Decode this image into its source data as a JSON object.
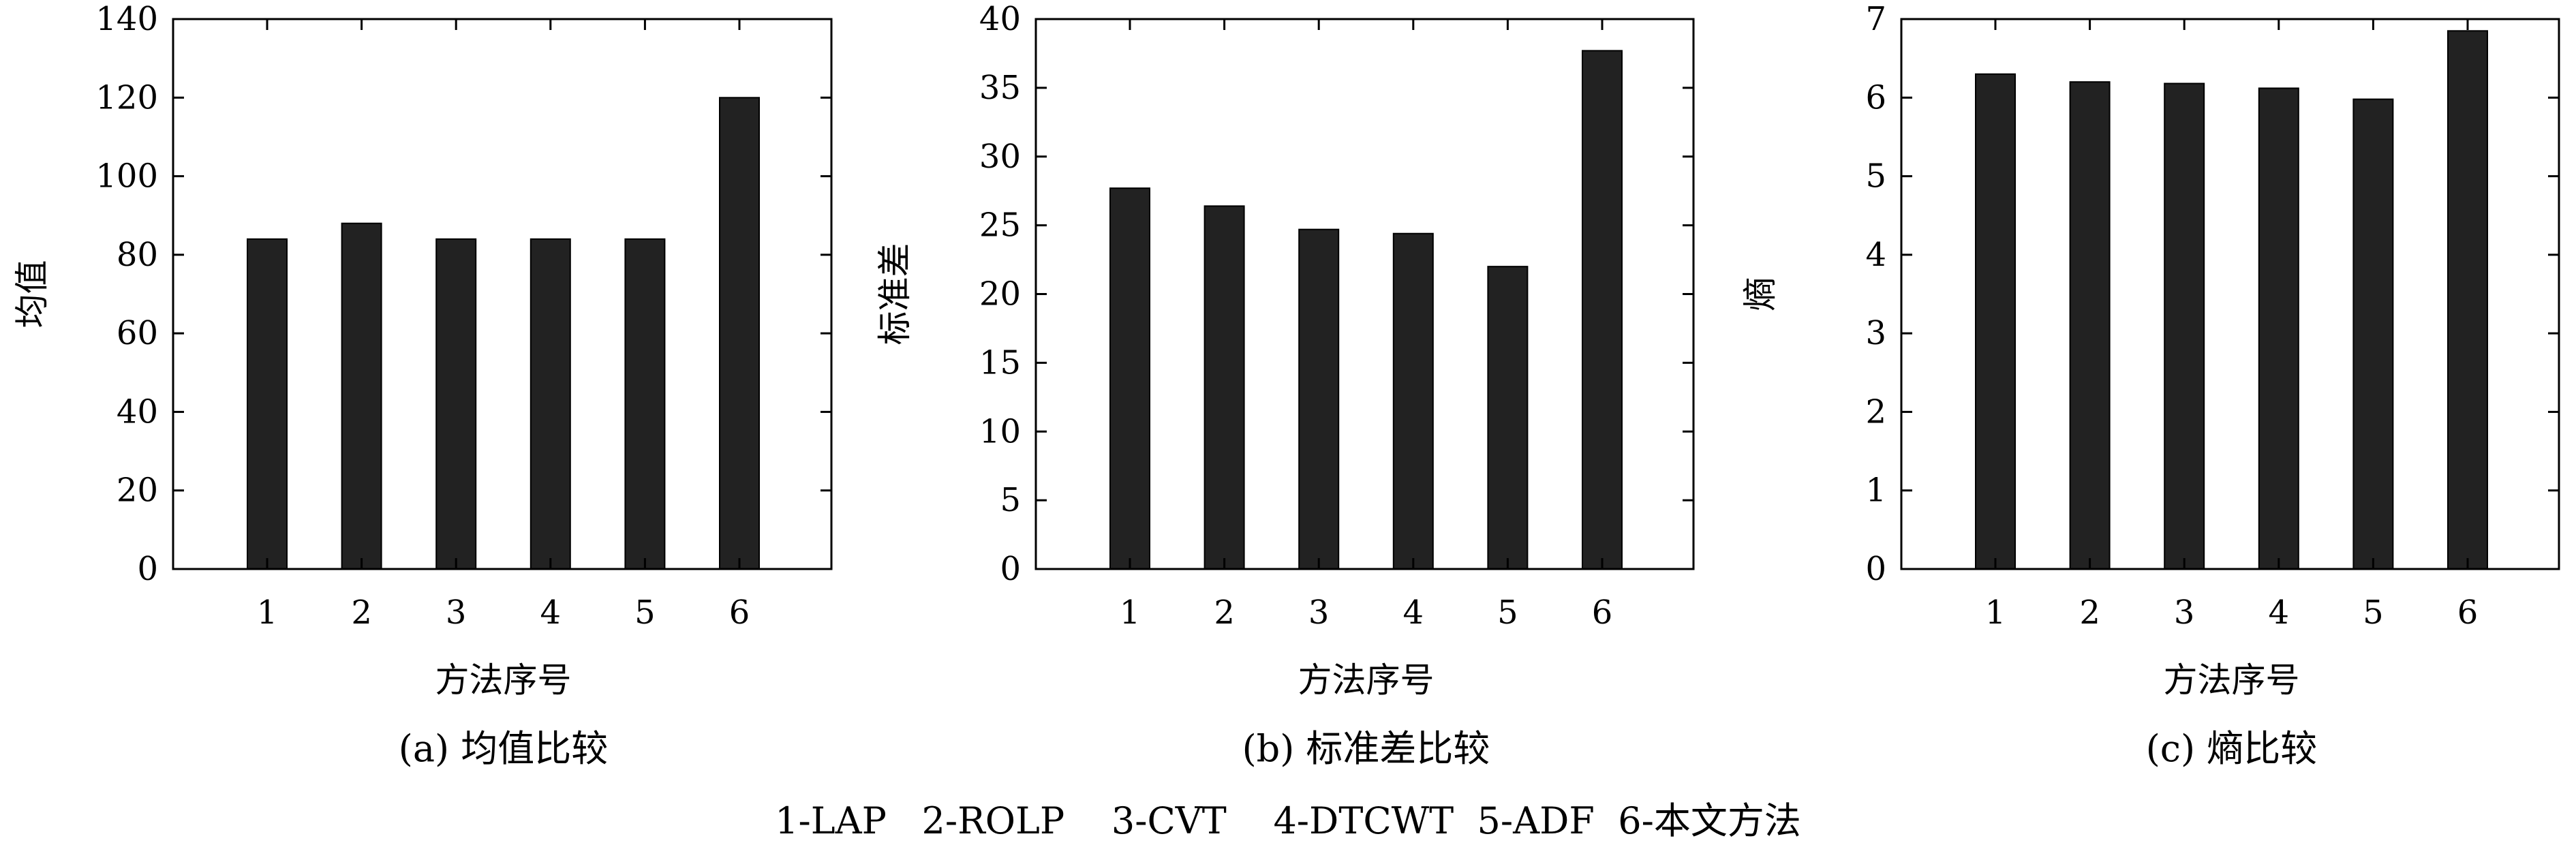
{
  "colors": {
    "bar": "#222222",
    "axis": "#000000",
    "background": "#ffffff"
  },
  "legend": "1-LAP   2-ROLP    3-CVT    4-DTCWT  5-ADF  6-本文方法",
  "chart_data": [
    {
      "type": "bar",
      "caption": "(a) 均值比较",
      "xlabel": "方法序号",
      "ylabel": "均值",
      "categories": [
        "1",
        "2",
        "3",
        "4",
        "5",
        "6"
      ],
      "values": [
        84,
        88,
        84,
        84,
        84,
        120
      ],
      "ylim": [
        0,
        140
      ],
      "yticks": [
        0,
        20,
        40,
        60,
        80,
        100,
        120,
        140
      ],
      "grid": false
    },
    {
      "type": "bar",
      "caption": "(b) 标准差比较",
      "xlabel": "方法序号",
      "ylabel": "标准差",
      "categories": [
        "1",
        "2",
        "3",
        "4",
        "5",
        "6"
      ],
      "values": [
        27.7,
        26.4,
        24.7,
        24.4,
        22.0,
        37.7
      ],
      "ylim": [
        0,
        40
      ],
      "yticks": [
        0,
        5,
        10,
        15,
        20,
        25,
        30,
        35,
        40
      ],
      "grid": false
    },
    {
      "type": "bar",
      "caption": "(c) 熵比较",
      "xlabel": "方法序号",
      "ylabel": "熵",
      "categories": [
        "1",
        "2",
        "3",
        "4",
        "5",
        "6"
      ],
      "values": [
        6.3,
        6.2,
        6.18,
        6.12,
        5.98,
        6.85
      ],
      "ylim": [
        0,
        7
      ],
      "yticks": [
        0,
        1,
        2,
        3,
        4,
        5,
        6,
        7
      ],
      "grid": false
    }
  ]
}
